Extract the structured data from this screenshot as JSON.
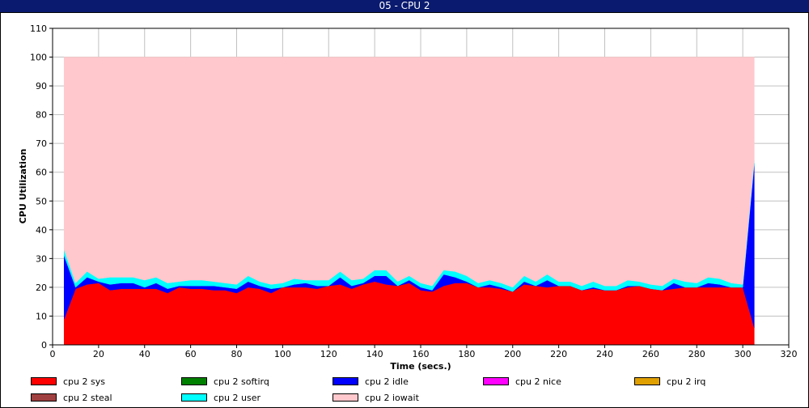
{
  "window": {
    "title": "05 - CPU 2"
  },
  "chart_data": {
    "type": "area",
    "stacked": true,
    "xlabel": "Time (secs.)",
    "ylabel": "CPU Utilization",
    "xlim": [
      0,
      320
    ],
    "ylim": [
      0,
      110
    ],
    "xticks": [
      0,
      20,
      40,
      60,
      80,
      100,
      120,
      140,
      160,
      180,
      200,
      220,
      240,
      260,
      280,
      300,
      320
    ],
    "yticks": [
      0,
      10,
      20,
      30,
      40,
      50,
      60,
      70,
      80,
      90,
      100,
      110
    ],
    "grid": true,
    "legend_position": "bottom",
    "x": [
      5,
      10,
      15,
      20,
      25,
      30,
      35,
      40,
      45,
      50,
      55,
      60,
      65,
      70,
      75,
      80,
      85,
      90,
      95,
      100,
      105,
      110,
      115,
      120,
      125,
      130,
      135,
      140,
      145,
      150,
      155,
      160,
      165,
      170,
      175,
      180,
      185,
      190,
      195,
      200,
      205,
      210,
      215,
      220,
      225,
      230,
      235,
      240,
      245,
      250,
      255,
      260,
      265,
      270,
      275,
      280,
      285,
      290,
      295,
      300,
      305
    ],
    "series": [
      {
        "name": "cpu 2 sys",
        "color": "#ff0000",
        "values": [
          9,
          19.5,
          21,
          21.5,
          19,
          19.5,
          19.5,
          19.5,
          19.5,
          18,
          20,
          19.5,
          19.5,
          19,
          19,
          18,
          20,
          19.5,
          18,
          20,
          20,
          20,
          19.5,
          20.5,
          21,
          19.5,
          21,
          22,
          21,
          20.5,
          21.5,
          19,
          18.5,
          20.5,
          21.5,
          21.5,
          20,
          20,
          19.5,
          18.5,
          21,
          20.5,
          20,
          20.5,
          20.5,
          19,
          19.5,
          19,
          19,
          20,
          20.5,
          19.5,
          19,
          19.5,
          20,
          20,
          20,
          20,
          20,
          20,
          6
        ]
      },
      {
        "name": "cpu 2 softirq",
        "color": "#008000",
        "values": [
          0,
          0,
          0,
          0,
          0,
          0,
          0,
          0,
          0,
          0,
          0,
          0,
          0,
          0,
          0,
          0,
          0,
          0,
          0,
          0,
          0,
          0,
          0,
          0,
          0,
          0,
          0,
          0,
          0,
          0,
          0,
          0,
          0,
          0,
          0,
          0,
          0,
          0,
          0,
          0,
          0,
          0,
          0,
          0,
          0,
          0,
          0,
          0,
          0,
          0,
          0,
          0,
          0,
          0,
          0,
          0,
          0,
          0,
          0,
          0,
          0
        ]
      },
      {
        "name": "cpu 2 idle",
        "color": "#0000ff",
        "values": [
          22,
          0.5,
          2.5,
          0.5,
          2,
          2,
          2,
          0.5,
          2,
          1.5,
          0.5,
          1,
          1,
          1.5,
          1,
          1.5,
          2,
          1,
          1.5,
          0,
          1,
          1.5,
          1,
          0,
          2.5,
          1,
          0.5,
          2,
          3,
          0,
          1,
          1,
          0.5,
          4,
          2,
          0.5,
          0,
          1,
          0.5,
          0,
          1,
          0,
          2.5,
          0,
          0,
          0,
          0.5,
          0,
          0,
          0.5,
          0,
          0,
          0,
          2,
          0,
          0,
          1.5,
          1,
          0,
          0,
          57
        ]
      },
      {
        "name": "cpu 2 nice",
        "color": "#ff00ff",
        "values": [
          0,
          0,
          0,
          0,
          0,
          0,
          0,
          0,
          0,
          0,
          0,
          0,
          0,
          0,
          0,
          0,
          0,
          0,
          0,
          0,
          0,
          0,
          0,
          0,
          0,
          0,
          0,
          0,
          0,
          0,
          0,
          0,
          0,
          0,
          0,
          0,
          0,
          0,
          0,
          0,
          0,
          0,
          0,
          0,
          0,
          0,
          0,
          0,
          0,
          0,
          0,
          0,
          0,
          0,
          0,
          0,
          0,
          0,
          0,
          0,
          0
        ]
      },
      {
        "name": "cpu 2 irq",
        "color": "#e0a000",
        "values": [
          0,
          0,
          0,
          0,
          0,
          0,
          0,
          0,
          0,
          0,
          0,
          0,
          0,
          0,
          0,
          0,
          0,
          0,
          0,
          0,
          0,
          0,
          0,
          0,
          0,
          0,
          0,
          0,
          0,
          0,
          0,
          0,
          0,
          0,
          0,
          0,
          0,
          0,
          0,
          0,
          0,
          0,
          0,
          0,
          0,
          0,
          0,
          0,
          0,
          0,
          0,
          0,
          0,
          0,
          0,
          0,
          0,
          0,
          0,
          0,
          0
        ]
      },
      {
        "name": "cpu 2 steal",
        "color": "#a04040",
        "values": [
          0,
          0,
          0,
          0,
          0,
          0,
          0,
          0,
          0,
          0,
          0,
          0,
          0,
          0,
          0,
          0,
          0,
          0,
          0,
          0,
          0,
          0,
          0,
          0,
          0,
          0,
          0,
          0,
          0,
          0,
          0,
          0,
          0,
          0,
          0,
          0,
          0,
          0,
          0,
          0,
          0,
          0,
          0,
          0,
          0,
          0,
          0,
          0,
          0,
          0,
          0,
          0,
          0,
          0,
          0,
          0,
          0,
          0,
          0,
          0,
          0
        ]
      },
      {
        "name": "cpu 2 user",
        "color": "#00ffff",
        "values": [
          2,
          1.5,
          2,
          1,
          2.5,
          2,
          2,
          2.5,
          2,
          2,
          1.5,
          2,
          2,
          1.5,
          1.5,
          1.5,
          2,
          1.5,
          1.5,
          1.5,
          2,
          1,
          2,
          2,
          2,
          2,
          1.5,
          2,
          2,
          1.5,
          1.5,
          1.5,
          1.5,
          1.5,
          2,
          2,
          1.5,
          1.5,
          1.5,
          1.5,
          2,
          1.5,
          2,
          1.5,
          1.5,
          1.5,
          2,
          1.5,
          1.5,
          2,
          1.5,
          1.5,
          1.5,
          1.5,
          2,
          1.5,
          2,
          2,
          1.5,
          1,
          1
        ]
      },
      {
        "name": "cpu 2 iowait",
        "color": "#ffc8cc",
        "values": [
          67,
          78.5,
          74.5,
          77,
          76.5,
          76.5,
          76.5,
          77.5,
          76.5,
          78.5,
          78,
          77.5,
          77.5,
          78,
          78.5,
          79,
          76,
          78,
          79,
          78.5,
          77,
          77.5,
          77.5,
          77.5,
          74.5,
          77.5,
          77,
          74,
          74,
          78,
          76,
          78.5,
          79.5,
          74,
          74.5,
          76,
          78.5,
          77.5,
          78.5,
          80,
          76,
          78,
          75.5,
          78,
          78,
          79.5,
          78,
          79.5,
          79.5,
          77.5,
          78,
          79,
          79.5,
          77,
          78,
          78.5,
          76.5,
          77,
          78.5,
          79,
          36
        ]
      }
    ]
  },
  "legend": {
    "items": [
      {
        "label": "cpu 2 sys",
        "color": "#ff0000"
      },
      {
        "label": "cpu 2 softirq",
        "color": "#008000"
      },
      {
        "label": "cpu 2 idle",
        "color": "#0000ff"
      },
      {
        "label": "cpu 2 nice",
        "color": "#ff00ff"
      },
      {
        "label": "cpu 2 irq",
        "color": "#e0a000"
      },
      {
        "label": "cpu 2 steal",
        "color": "#a04040"
      },
      {
        "label": "cpu 2 user",
        "color": "#00ffff"
      },
      {
        "label": "cpu 2 iowait",
        "color": "#ffc8cc"
      }
    ]
  }
}
